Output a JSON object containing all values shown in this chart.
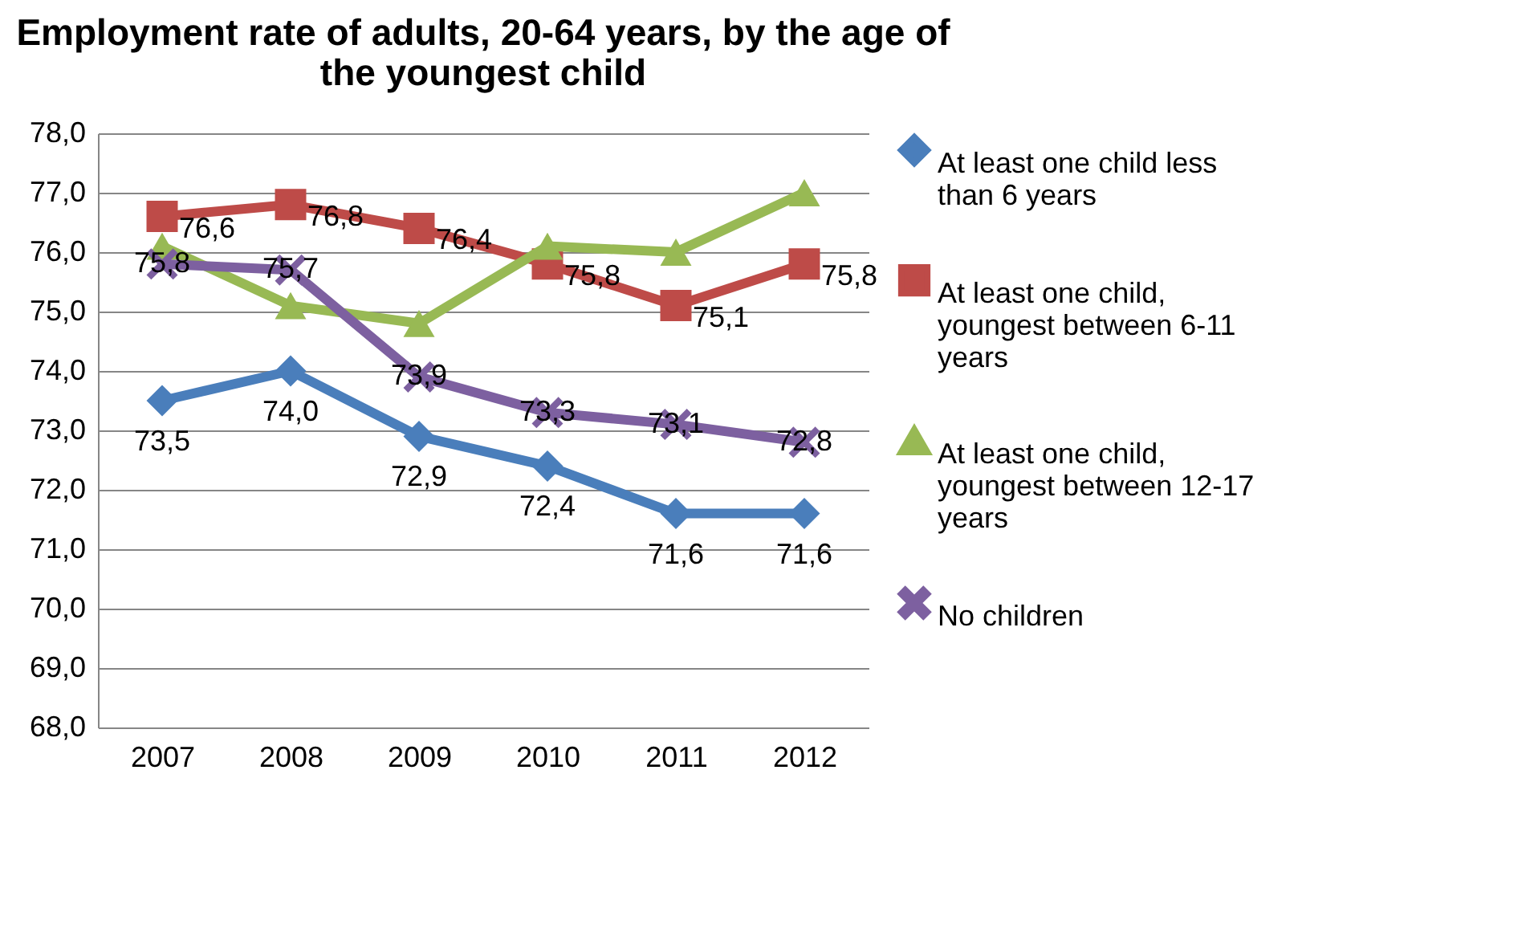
{
  "chart_data": {
    "type": "line",
    "title": "Employment rate of adults, 20-64 years, by the age of the youngest child",
    "categories": [
      "2007",
      "2008",
      "2009",
      "2010",
      "2011",
      "2012"
    ],
    "ylim": [
      68,
      78
    ],
    "yticks": [
      {
        "value": 68,
        "label": "68,0"
      },
      {
        "value": 69,
        "label": "69,0"
      },
      {
        "value": 70,
        "label": "70,0"
      },
      {
        "value": 71,
        "label": "71,0"
      },
      {
        "value": 72,
        "label": "72,0"
      },
      {
        "value": 73,
        "label": "73,0"
      },
      {
        "value": 74,
        "label": "74,0"
      },
      {
        "value": 75,
        "label": "75,0"
      },
      {
        "value": 76,
        "label": "76,0"
      },
      {
        "value": 77,
        "label": "77,0"
      },
      {
        "value": 78,
        "label": "78,0"
      }
    ],
    "grid": "y",
    "legend": "right",
    "series": [
      {
        "name": "At least one child less than 6 years",
        "color": "#4a7ebb",
        "marker": "diamond",
        "values": [
          73.5,
          74.0,
          72.9,
          72.4,
          71.6,
          71.6
        ],
        "value_labels": [
          "73,5",
          "74,0",
          "72,9",
          "72,4",
          "71,6",
          "71,6"
        ]
      },
      {
        "name": "At least one child, youngest between 6-11 years",
        "color": "#be4b48",
        "marker": "square",
        "values": [
          76.6,
          76.8,
          76.4,
          75.8,
          75.1,
          75.8
        ],
        "value_labels": [
          "76,6",
          "76,8",
          "76,4",
          "75,8",
          "75,1",
          "75,8"
        ]
      },
      {
        "name": "At least one child, youngest between 12-17 years",
        "color": "#98b954",
        "marker": "triangle",
        "values": [
          76.1,
          75.1,
          74.8,
          76.1,
          76.0,
          77.0
        ]
      },
      {
        "name": "No children",
        "color": "#7d60a0",
        "marker": "cross",
        "values": [
          75.8,
          75.7,
          73.9,
          73.3,
          73.1,
          72.8
        ],
        "value_labels": [
          "75,8",
          "75,7",
          "73,9",
          "73,3",
          "73,1",
          "72,8"
        ]
      }
    ]
  }
}
